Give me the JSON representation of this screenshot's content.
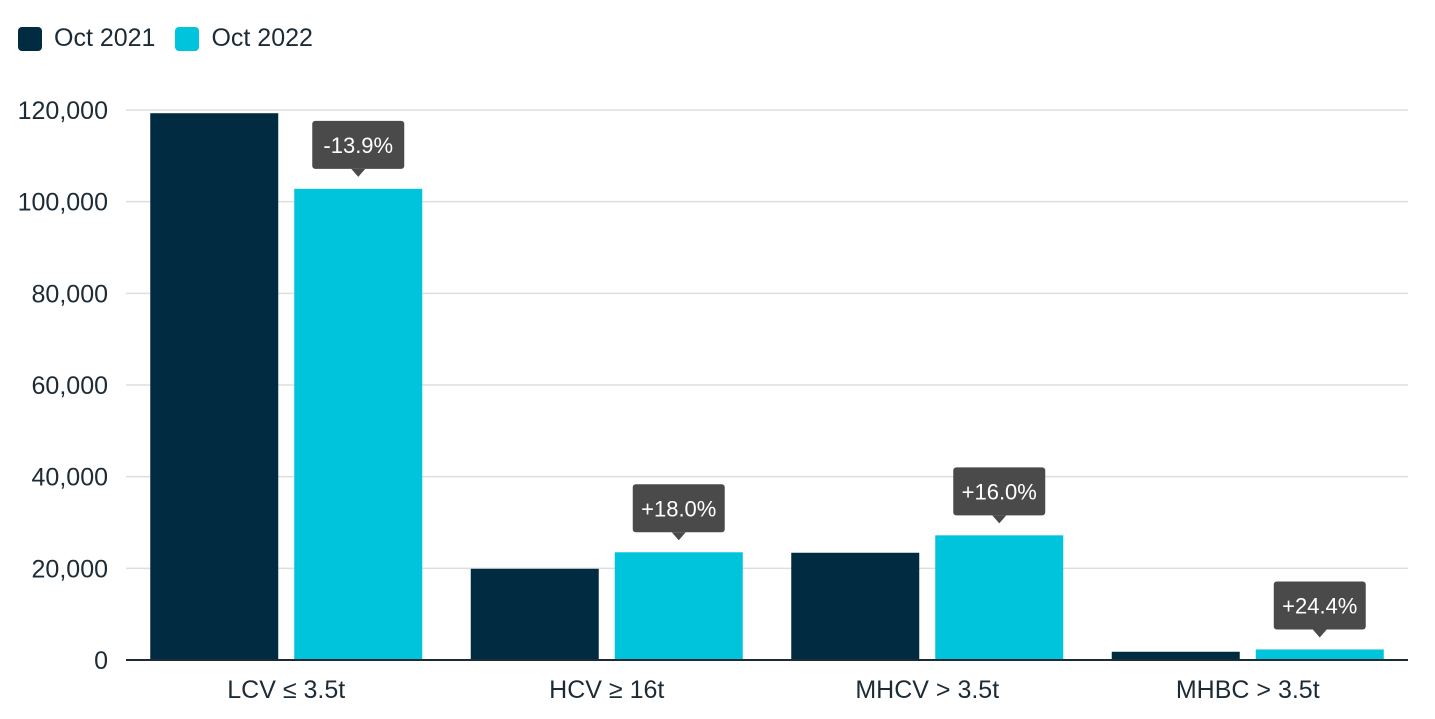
{
  "chart_data": {
    "type": "bar",
    "categories": [
      "LCV ≤ 3.5t",
      "HCV ≥ 16t",
      "MHCV > 3.5t",
      "MHBC > 3.5t"
    ],
    "series": [
      {
        "name": "Oct 2021",
        "color": "#002b40",
        "values": [
          119300,
          19900,
          23400,
          1800
        ]
      },
      {
        "name": "Oct 2022",
        "color": "#00c4dc",
        "values": [
          102800,
          23500,
          27200,
          2300
        ]
      }
    ],
    "annotations": [
      "-13.9%",
      "+18.0%",
      "+16.0%",
      "+24.4%"
    ],
    "y_ticks": [
      "0",
      "20,000",
      "40,000",
      "60,000",
      "80,000",
      "100,000",
      "120,000"
    ],
    "ylim": [
      0,
      120000
    ],
    "grid": true,
    "legend_position": "top-left",
    "annotation_color": "#4a4a4a",
    "grid_color": "#dedede",
    "text_color": "#1d2b36"
  }
}
